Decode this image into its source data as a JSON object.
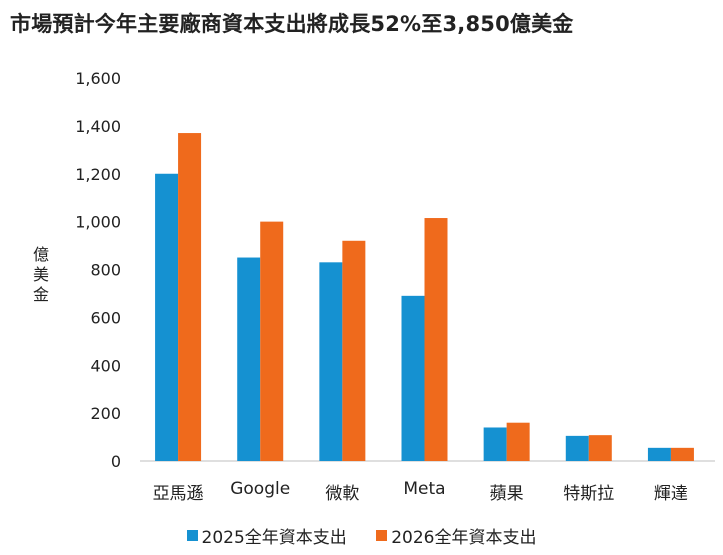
{
  "chart_data": {
    "type": "bar",
    "title": "市場預計今年主要廠商資本支出將成長52%至3,850億美金",
    "ylabel": "億美金",
    "xlabel": "",
    "ylim": [
      0,
      1600
    ],
    "yticks": [
      "0",
      "200",
      "400",
      "600",
      "800",
      "1,000",
      "1,200",
      "1,400",
      "1,600"
    ],
    "categories": [
      "亞馬遜",
      "Google",
      "微軟",
      "Meta",
      "蘋果",
      "特斯拉",
      "輝達"
    ],
    "series": [
      {
        "name": "2025全年資本支出",
        "color": "#1591d1",
        "values": [
          1200,
          850,
          830,
          690,
          140,
          105,
          55
        ]
      },
      {
        "name": "2026全年資本支出",
        "color": "#ef6a1c",
        "values": [
          1370,
          1000,
          920,
          1015,
          160,
          108,
          55
        ]
      }
    ],
    "grid": false,
    "legend": "bottom"
  }
}
